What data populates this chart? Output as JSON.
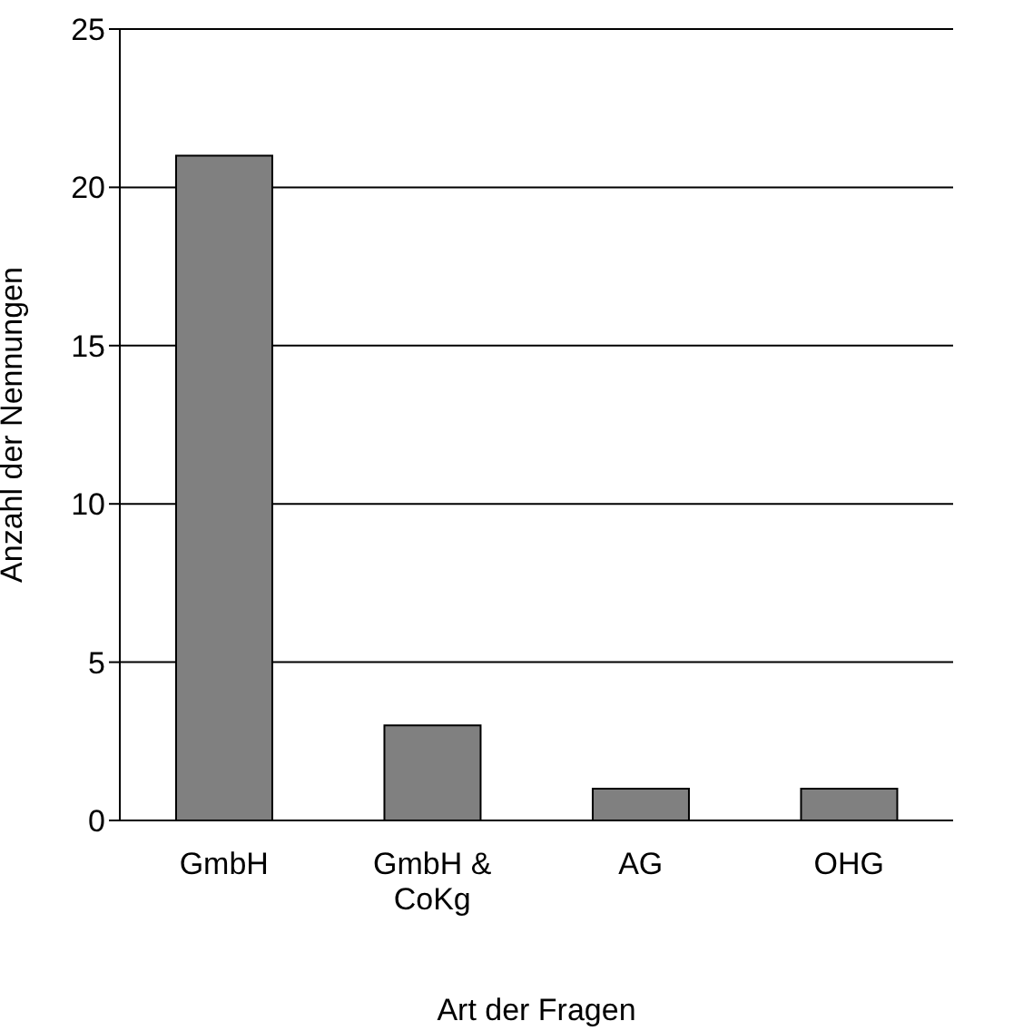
{
  "chart_data": {
    "type": "bar",
    "xlabel": "Art der Fragen",
    "ylabel": "Anzahl der Nennungen",
    "categories": [
      "GmbH",
      "GmbH & CoKg",
      "AG",
      "OHG"
    ],
    "values": [
      21,
      3,
      1,
      1
    ],
    "color": "#808080",
    "ylim": [
      0,
      25
    ],
    "yticks": [
      0,
      5,
      10,
      15,
      20,
      25
    ],
    "grid": "y"
  }
}
